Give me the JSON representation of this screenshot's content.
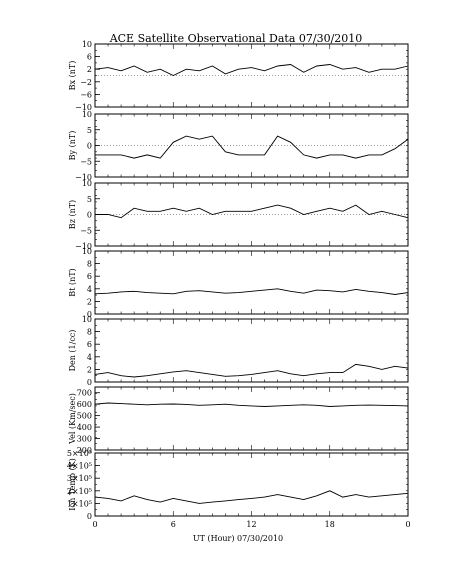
{
  "title": "ACE Satellite Observational Data   07/30/2010",
  "xlabel": "UT (Hour)   07/30/2010",
  "x_ticks": [
    "0",
    "6",
    "12",
    "18",
    "0"
  ],
  "chart_data": [
    {
      "type": "line",
      "ylabel": "Bx (nT)",
      "ylim": [
        -10,
        10
      ],
      "y_ticks": [
        "10",
        "6",
        "2",
        "−2",
        "−6",
        "−10"
      ],
      "y_tick_values": [
        10,
        6,
        2,
        -2,
        -6,
        -10
      ],
      "xlim": [
        0,
        24
      ],
      "series": [
        {
          "x": [
            0,
            1,
            2,
            3,
            4,
            5,
            6,
            7,
            8,
            9,
            10,
            11,
            12,
            13,
            14,
            15,
            16,
            17,
            18,
            19,
            20,
            21,
            22,
            23,
            24
          ],
          "values": [
            2,
            2.5,
            1.5,
            3,
            1,
            2,
            0,
            2,
            1.5,
            3,
            0.5,
            2,
            2.5,
            1.5,
            3,
            3.5,
            1,
            3,
            3.5,
            2,
            2.5,
            1,
            2,
            2,
            3
          ]
        }
      ]
    },
    {
      "type": "line",
      "ylabel": "By (nT)",
      "ylim": [
        -10,
        10
      ],
      "y_ticks": [
        "10",
        "5",
        "0",
        "−5",
        "−10"
      ],
      "y_tick_values": [
        10,
        5,
        0,
        -5,
        -10
      ],
      "xlim": [
        0,
        24
      ],
      "series": [
        {
          "x": [
            0,
            1,
            2,
            3,
            4,
            5,
            6,
            7,
            8,
            9,
            10,
            11,
            12,
            13,
            14,
            15,
            16,
            17,
            18,
            19,
            20,
            21,
            22,
            23,
            24
          ],
          "values": [
            -3,
            -3,
            -3,
            -4,
            -3,
            -4,
            1,
            3,
            2,
            3,
            -2,
            -3,
            -3,
            -3,
            3,
            1,
            -3,
            -4,
            -3,
            -3,
            -4,
            -3,
            -3,
            -1,
            2
          ]
        }
      ]
    },
    {
      "type": "line",
      "ylabel": "Bz (nT)",
      "ylim": [
        -10,
        10
      ],
      "y_ticks": [
        "10",
        "5",
        "0",
        "−5",
        "−10"
      ],
      "y_tick_values": [
        10,
        5,
        0,
        -5,
        -10
      ],
      "xlim": [
        0,
        24
      ],
      "series": [
        {
          "x": [
            0,
            1,
            2,
            3,
            4,
            5,
            6,
            7,
            8,
            9,
            10,
            11,
            12,
            13,
            14,
            15,
            16,
            17,
            18,
            19,
            20,
            21,
            22,
            23,
            24
          ],
          "values": [
            0,
            0,
            -1,
            2,
            1,
            1,
            2,
            1,
            2,
            0,
            1,
            1,
            1,
            2,
            3,
            2,
            0,
            1,
            2,
            1,
            3,
            0,
            1,
            0,
            -1
          ]
        }
      ]
    },
    {
      "type": "line",
      "ylabel": "Bt (nT)",
      "ylim": [
        0,
        10
      ],
      "y_ticks": [
        "10",
        "8",
        "6",
        "4",
        "2",
        "0"
      ],
      "y_tick_values": [
        10,
        8,
        6,
        4,
        2,
        0
      ],
      "xlim": [
        0,
        24
      ],
      "series": [
        {
          "x": [
            0,
            1,
            2,
            3,
            4,
            5,
            6,
            7,
            8,
            9,
            10,
            11,
            12,
            13,
            14,
            15,
            16,
            17,
            18,
            19,
            20,
            21,
            22,
            23,
            24
          ],
          "values": [
            3.2,
            3.3,
            3.5,
            3.6,
            3.4,
            3.3,
            3.2,
            3.6,
            3.7,
            3.5,
            3.3,
            3.4,
            3.6,
            3.8,
            4.0,
            3.6,
            3.3,
            3.8,
            3.7,
            3.5,
            3.9,
            3.6,
            3.4,
            3.1,
            3.4
          ]
        }
      ]
    },
    {
      "type": "line",
      "ylabel": "Den (1/cc)",
      "ylim": [
        0,
        10
      ],
      "y_ticks": [
        "10",
        "8",
        "6",
        "4",
        "2",
        "0"
      ],
      "y_tick_values": [
        10,
        8,
        6,
        4,
        2,
        0
      ],
      "xlim": [
        0,
        24
      ],
      "series": [
        {
          "x": [
            0,
            1,
            2,
            3,
            4,
            5,
            6,
            7,
            8,
            9,
            10,
            11,
            12,
            13,
            14,
            15,
            16,
            17,
            18,
            19,
            20,
            21,
            22,
            23,
            24
          ],
          "values": [
            1.2,
            1.5,
            1.0,
            0.8,
            1.0,
            1.3,
            1.6,
            1.8,
            1.5,
            1.2,
            0.9,
            1.0,
            1.2,
            1.5,
            1.8,
            1.3,
            1.0,
            1.3,
            1.5,
            1.5,
            2.8,
            2.5,
            2.0,
            2.5,
            2.2
          ]
        }
      ]
    },
    {
      "type": "line",
      "ylabel": "Vel (Km/sec)",
      "ylim": [
        200,
        750
      ],
      "y_ticks": [
        "700",
        "600",
        "500",
        "400",
        "300",
        "200"
      ],
      "y_tick_values": [
        700,
        600,
        500,
        400,
        300,
        200
      ],
      "xlim": [
        0,
        24
      ],
      "series": [
        {
          "x": [
            0,
            1,
            2,
            3,
            4,
            5,
            6,
            7,
            8,
            9,
            10,
            11,
            12,
            13,
            14,
            15,
            16,
            17,
            18,
            19,
            20,
            21,
            22,
            23,
            24
          ],
          "values": [
            600,
            610,
            605,
            600,
            595,
            600,
            602,
            598,
            590,
            595,
            600,
            590,
            585,
            580,
            585,
            590,
            595,
            590,
            580,
            585,
            590,
            592,
            590,
            588,
            585
          ]
        }
      ]
    },
    {
      "type": "line",
      "ylabel": "Ion Temp (K)",
      "ylim": [
        0,
        500000
      ],
      "y_ticks": [
        "5×10⁵",
        "4×10⁵",
        "3×10⁵",
        "2×10⁵",
        "1×10⁵",
        "0"
      ],
      "y_tick_values": [
        500000,
        400000,
        300000,
        200000,
        100000,
        0
      ],
      "xlim": [
        0,
        24
      ],
      "series": [
        {
          "x": [
            0,
            1,
            2,
            3,
            4,
            5,
            6,
            7,
            8,
            9,
            10,
            11,
            12,
            13,
            14,
            15,
            16,
            17,
            18,
            19,
            20,
            21,
            22,
            23,
            24
          ],
          "values": [
            150000,
            140000,
            120000,
            160000,
            130000,
            110000,
            140000,
            120000,
            100000,
            110000,
            120000,
            130000,
            140000,
            150000,
            170000,
            150000,
            130000,
            160000,
            200000,
            150000,
            170000,
            150000,
            160000,
            170000,
            180000
          ]
        }
      ]
    }
  ]
}
